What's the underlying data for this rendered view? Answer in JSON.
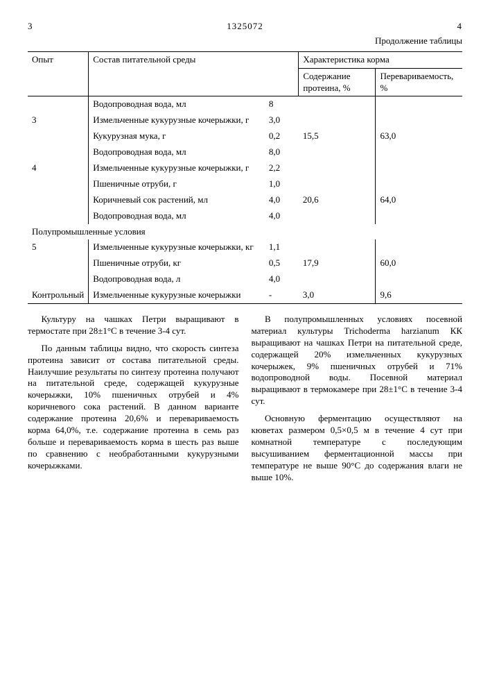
{
  "page_left": "3",
  "doc_number": "1325072",
  "page_right": "4",
  "table_cont": "Продолжение таблицы",
  "headers": {
    "opyt": "Опыт",
    "sostav": "Состав питательной среды",
    "char": "Характеристика корма",
    "protein": "Содержание протеина, %",
    "digest": "Перевариваемость, %"
  },
  "rows": [
    {
      "opyt": "",
      "name": "Водопроводная вода, мл",
      "val": "8",
      "p": "",
      "d": ""
    },
    {
      "opyt": "3",
      "name": "Измельченные кукурузные кочерыжки, г",
      "val": "3,0",
      "p": "",
      "d": ""
    },
    {
      "opyt": "",
      "name": "Кукурузная мука, г",
      "val": "0,2",
      "p": "15,5",
      "d": "63,0"
    },
    {
      "opyt": "",
      "name": "Водопроводная вода, мл",
      "val": "8,0",
      "p": "",
      "d": ""
    },
    {
      "opyt": "4",
      "name": "Измельченные кукурузные кочерыжки, г",
      "val": "2,2",
      "p": "",
      "d": ""
    },
    {
      "opyt": "",
      "name": "Пшеничные отруби, г",
      "val": "1,0",
      "p": "",
      "d": ""
    },
    {
      "opyt": "",
      "name": "Коричневый сок растений, мл",
      "val": "4,0",
      "p": "20,6",
      "d": "64,0"
    },
    {
      "opyt": "",
      "name": "Водопроводная вода, мл",
      "val": "4,0",
      "p": "",
      "d": ""
    }
  ],
  "section_label": "Полупромышленные условия",
  "rows2": [
    {
      "opyt": "5",
      "name": "Измельченные кукурузные кочерыжки, кг",
      "val": "1,1",
      "p": "",
      "d": ""
    },
    {
      "opyt": "",
      "name": "Пшеничные отруби, кг",
      "val": "0,5",
      "p": "17,9",
      "d": "60,0"
    },
    {
      "opyt": "",
      "name": "Водопроводная вода, л",
      "val": "4,0",
      "p": "",
      "d": ""
    },
    {
      "opyt": "Контрольный",
      "name": "Измельченные кукурузные кочерыжки",
      "val": "-",
      "p": "3,0",
      "d": "9,6"
    }
  ],
  "left_p1": "Культуру на чашках Петри выращивают в термостате при 28±1°С в течение 3-4 сут.",
  "left_p2": "По данным таблицы видно, что скорость синтеза протеина зависит от состава питательной среды. Наилучшие результаты по синтезу протеина получают на питательной среде, содержащей кукурузные кочерыжки, 10% пшеничных отрубей и 4% коричневого сока растений. В данном варианте содержание протеина 20,6% и перевариваемость корма 64,0%, т.е. содержание протеина в семь раз больше и перевариваемость корма в шесть раз выше по сравнению с необработанными кукурузными кочерыжками.",
  "right_p1": "В полупромышленных условиях посевной материал культуры Trichoderma harzianum КК выращивают на чашках Петри на питательной среде, содержащей 20% измельченных кукурузных кочерыжек, 9% пшеничных отрубей и 71% водопроводной воды. Посевной материал выращивают в термокамере при 28±1°С в течение 3-4 сут.",
  "right_p2": "Основную ферментацию осуществляют на кюветах размером 0,5×0,5 м в течение 4 сут при комнатной температуре с последующим высушиванием ферментационной массы при температуре не выше 90°С до содержания влаги не выше 10%."
}
